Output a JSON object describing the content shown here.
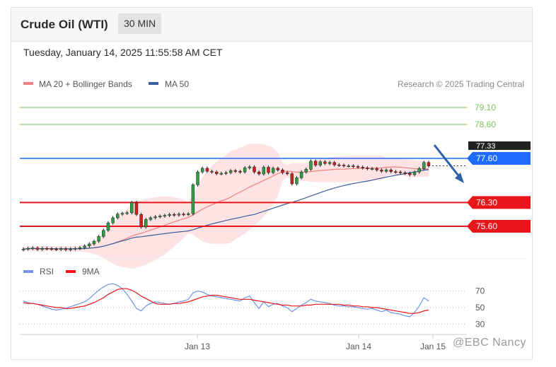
{
  "header": {
    "title": "Crude Oil (WTI)",
    "timeframe": "30 MIN"
  },
  "datetime": "Tuesday, January 14, 2025 11:55:58 AM CET",
  "legend": {
    "ma20": "MA 20 + Bollinger Bands",
    "ma50": "MA 50",
    "rsi": "RSI",
    "ma9": "9MA"
  },
  "source": "Research © 2025 Trading Central",
  "watermark": "@EBC Nancy",
  "colors": {
    "ma20": "#f08080",
    "bands": "#fde3e3",
    "ma50": "#3a5f9e",
    "resistance": "#1e6bff",
    "support": "#e8161b",
    "target": "#7cc45a",
    "rsi": "#6f94e6",
    "ma9": "#e8161b",
    "arrow": "#2f5fa8"
  },
  "chart_data": [
    {
      "type": "candlestick",
      "x_ticks": [
        "Jan 13",
        "Jan 14",
        "Jan 15"
      ],
      "ylim": [
        74.6,
        79.6
      ],
      "levels": [
        {
          "value": 79.1,
          "label": "79.10",
          "role": "target"
        },
        {
          "value": 78.6,
          "label": "78.60",
          "role": "target"
        },
        {
          "value": 77.6,
          "label": "77.60",
          "role": "resistance"
        },
        {
          "value": 76.3,
          "label": "76.30",
          "role": "support"
        },
        {
          "value": 75.6,
          "label": "75.60",
          "role": "support"
        }
      ],
      "current_price_partial": "77.33",
      "closes": [
        74.93,
        74.95,
        74.96,
        74.92,
        74.95,
        74.94,
        74.93,
        74.92,
        74.94,
        74.91,
        74.93,
        74.95,
        74.97,
        75.02,
        75.08,
        75.16,
        75.3,
        75.48,
        75.7,
        75.85,
        75.96,
        75.98,
        76.0,
        76.3,
        75.95,
        75.58,
        75.8,
        75.85,
        75.88,
        75.9,
        75.92,
        75.95,
        75.93,
        75.96,
        75.95,
        75.97,
        76.82,
        77.2,
        77.31,
        77.22,
        77.2,
        77.15,
        77.16,
        77.18,
        77.24,
        77.22,
        77.2,
        77.32,
        77.35,
        77.2,
        77.14,
        77.34,
        77.18,
        77.31,
        77.26,
        77.18,
        77.15,
        76.85,
        77.03,
        77.2,
        77.28,
        77.52,
        77.4,
        77.5,
        77.45,
        77.48,
        77.41,
        77.4,
        77.38,
        77.38,
        77.36,
        77.34,
        77.32,
        77.3,
        77.3,
        77.26,
        77.22,
        77.26,
        77.21,
        77.2,
        77.18,
        77.16,
        77.12,
        77.2,
        77.3,
        77.48,
        77.38
      ]
    },
    {
      "type": "line",
      "title": "RSI",
      "yticks": [
        70,
        50,
        30
      ],
      "ylim": [
        20,
        80
      ],
      "series": [
        {
          "name": "RSI",
          "values": [
            58,
            56,
            55,
            54,
            52,
            50,
            48,
            47,
            48,
            49,
            51,
            53,
            55,
            57,
            61,
            66,
            71,
            75,
            78,
            79,
            77,
            73,
            66,
            58,
            49,
            46,
            52,
            55,
            57,
            56,
            55,
            54,
            55,
            57,
            58,
            60,
            68,
            70,
            69,
            66,
            64,
            63,
            62,
            61,
            60,
            59,
            58,
            62,
            64,
            56,
            49,
            57,
            51,
            54,
            55,
            52,
            50,
            45,
            49,
            53,
            56,
            60,
            58,
            57,
            56,
            55,
            53,
            52,
            52,
            51,
            51,
            50,
            49,
            48,
            49,
            47,
            45,
            47,
            44,
            43,
            42,
            40,
            39,
            44,
            52,
            62,
            58
          ]
        },
        {
          "name": "9MA",
          "values": [
            56,
            55,
            55,
            54,
            53,
            52,
            51,
            50,
            50,
            49,
            49,
            50,
            51,
            52,
            54,
            56,
            59,
            62,
            66,
            69,
            72,
            73,
            73,
            71,
            68,
            64,
            61,
            58,
            55,
            54,
            54,
            54,
            55,
            55,
            56,
            57,
            59,
            61,
            63,
            64,
            65,
            65,
            64,
            63,
            62,
            61,
            60,
            60,
            60,
            59,
            58,
            57,
            56,
            55,
            54,
            53,
            53,
            52,
            52,
            52,
            53,
            53,
            54,
            54,
            54,
            54,
            54,
            54,
            53,
            53,
            52,
            52,
            51,
            51,
            50,
            50,
            49,
            48,
            47,
            46,
            45,
            44,
            43,
            43,
            44,
            46,
            47
          ]
        }
      ]
    }
  ]
}
